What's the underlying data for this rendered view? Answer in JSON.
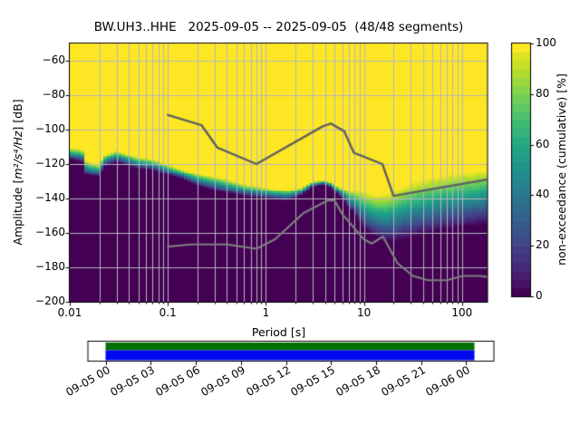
{
  "figure": {
    "title": "BW.UH3..HHE   2025-09-05 -- 2025-09-05  (48/48 segments)",
    "xlabel": "Period [s]",
    "ylabel_prefix": "Amplitude [",
    "ylabel_units": "m²/s⁴/Hz",
    "ylabel_suffix": "] [dB]",
    "x_tick_labels": [
      "0.01",
      "0.1",
      "1",
      "10",
      "100"
    ],
    "y_tick_labels": [
      "−60",
      "−80",
      "−100",
      "−120",
      "−140",
      "−160",
      "−180",
      "−200"
    ],
    "colorbar": {
      "label": "non-exceedance (cumulative) [%]",
      "tick_labels": [
        "0",
        "20",
        "40",
        "60",
        "80",
        "100"
      ]
    },
    "timeline": {
      "tick_labels": [
        "09-05 00",
        "09-05 03",
        "09-05 06",
        "09-05 09",
        "09-05 12",
        "09-05 15",
        "09-05 18",
        "09-05 21",
        "09-06 00"
      ],
      "bar_top_color": "#007000",
      "bar_bottom_color": "#0008f0",
      "box_fill": "#ffffff",
      "box_border": "#000000"
    }
  },
  "chart_data": {
    "type": "heatmap",
    "station": "BW.UH3..HHE",
    "date_range": "2025-09-05 -- 2025-09-05",
    "segments": "48/48",
    "xlabel": "Period [s]",
    "xscale": "log",
    "xlim": [
      0.01,
      180
    ],
    "x_ticks_s": [
      0.01,
      0.1,
      1,
      10,
      100
    ],
    "ylabel": "Amplitude [m^2/s^4/Hz] [dB]",
    "ylim": [
      -200,
      -50
    ],
    "y_ticks_db": [
      -60,
      -80,
      -100,
      -120,
      -140,
      -160,
      -180,
      -200
    ],
    "grid": true,
    "grid_color": "#b4b6bd",
    "colorbar_label": "non-exceedance (cumulative) [%]",
    "colorbar_range": [
      0,
      100
    ],
    "colorbar_ticks": [
      0,
      20,
      40,
      60,
      80,
      100
    ],
    "colormap": "viridis",
    "colormap_stops": [
      "#440154",
      "#482475",
      "#414487",
      "#355f8d",
      "#2a788e",
      "#21918c",
      "#22a884",
      "#44bf70",
      "#7ad151",
      "#bddf26",
      "#fde725"
    ],
    "colormap_levels": 30,
    "db_bin_width": 1,
    "period_bins_per_octave": 8,
    "psd_distribution": {
      "comment": "cumulative non-exceedance ramps from 0% (at db_0pct, solid dark purple below) to 100% (at db_100pct, solid yellow above), per period in seconds",
      "periods_s": [
        0.01,
        0.0135,
        0.0145,
        0.019,
        0.023,
        0.03,
        0.048,
        0.07,
        0.089,
        0.137,
        0.21,
        0.37,
        0.65,
        1.2,
        1.7,
        2.2,
        2.9,
        3.8,
        4.6,
        6.0,
        7.5,
        10,
        13,
        17,
        22,
        30,
        45,
        70,
        110,
        180
      ],
      "db_100pct": [
        -110.5,
        -111.5,
        -118,
        -120.5,
        -114.5,
        -112,
        -116,
        -117.5,
        -119.5,
        -123,
        -126,
        -128.5,
        -132,
        -134.5,
        -135,
        -134,
        -130.5,
        -129.5,
        -130.5,
        -134,
        -135.5,
        -136,
        -138,
        -137.5,
        -134.5,
        -131,
        -128.5,
        -126.5,
        -125,
        -123.5
      ],
      "db_0pct": [
        -117.5,
        -119,
        -126,
        -127.5,
        -121,
        -119,
        -122.5,
        -123.5,
        -125.5,
        -128.5,
        -133,
        -136.5,
        -139,
        -140.5,
        -141,
        -139,
        -133.5,
        -132,
        -133.5,
        -140,
        -147,
        -158,
        -162.5,
        -165,
        -164.5,
        -162.5,
        -160.5,
        -158,
        -156.5,
        -154.5
      ]
    },
    "noise_models": {
      "nhnm": {
        "color": "#606060",
        "periods_s": [
          0.1,
          0.22,
          0.32,
          0.8,
          3.8,
          4.6,
          6.3,
          7.9,
          15.4,
          20.0,
          180.0
        ],
        "db": [
          -91.5,
          -97.4,
          -110.5,
          -120.0,
          -98.1,
          -96.5,
          -101.0,
          -113.5,
          -120.0,
          -138.5,
          -129.0
        ]
      },
      "nlnm": {
        "color": "#7e7e7e",
        "periods_s": [
          0.1,
          0.17,
          0.4,
          0.8,
          1.24,
          2.4,
          4.3,
          5.0,
          6.0,
          10.0,
          12.0,
          15.6,
          21.9,
          31.6,
          45.0,
          70.0,
          101.0,
          154.0,
          180.0
        ],
        "db": [
          -168.0,
          -166.7,
          -166.7,
          -169.2,
          -163.7,
          -148.6,
          -141.1,
          -141.1,
          -149.0,
          -163.8,
          -166.2,
          -162.1,
          -177.5,
          -185.0,
          -187.5,
          -187.5,
          -185.0,
          -185.0,
          -185.6
        ]
      }
    },
    "timeline_coverage": {
      "start": "09-05 00",
      "end": "09-06 00",
      "tick_interval_hours": 3,
      "full_coverage": true
    }
  }
}
